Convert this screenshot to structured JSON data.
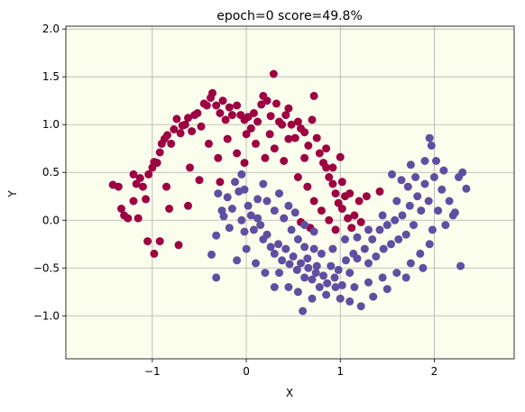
{
  "chart_data": {
    "type": "scatter",
    "title": "epoch=0 score=49.8%",
    "xlabel": "X",
    "ylabel": "Y",
    "xlim": [
      -1.92,
      2.85
    ],
    "ylim": [
      -1.45,
      2.03
    ],
    "xticks": [
      {
        "value": -1,
        "label": "−1"
      },
      {
        "value": 0,
        "label": "0"
      },
      {
        "value": 1,
        "label": "1"
      },
      {
        "value": 2,
        "label": "2"
      }
    ],
    "yticks": [
      {
        "value": -1.0,
        "label": "−1.0"
      },
      {
        "value": -0.5,
        "label": "−0.5"
      },
      {
        "value": 0.0,
        "label": "0.0"
      },
      {
        "value": 0.5,
        "label": "0.5"
      },
      {
        "value": 1.0,
        "label": "1.0"
      },
      {
        "value": 1.5,
        "label": "1.5"
      },
      {
        "value": 2.0,
        "label": "2.0"
      }
    ],
    "grid": true,
    "background_color": "#fbfeec",
    "series": [
      {
        "color": "#9e0142",
        "points": [
          [
            -1.42,
            0.37
          ],
          [
            -1.36,
            0.35
          ],
          [
            -1.33,
            0.12
          ],
          [
            -1.3,
            0.05
          ],
          [
            -1.26,
            0.02
          ],
          [
            -1.2,
            0.48
          ],
          [
            -1.17,
            0.38
          ],
          [
            -1.13,
            0.44
          ],
          [
            -1.1,
            0.35
          ],
          [
            -1.07,
            0.22
          ],
          [
            -1.04,
            0.48
          ],
          [
            -1.0,
            0.55
          ],
          [
            -0.98,
            0.61
          ],
          [
            -0.95,
            0.6
          ],
          [
            -0.92,
            0.71
          ],
          [
            -0.9,
            0.8
          ],
          [
            -0.87,
            0.85
          ],
          [
            -0.84,
            0.89
          ],
          [
            -0.8,
            0.8
          ],
          [
            -0.77,
            0.95
          ],
          [
            -0.74,
            1.06
          ],
          [
            -0.7,
            0.91
          ],
          [
            -0.68,
            0.99
          ],
          [
            -0.65,
            1.0
          ],
          [
            -0.62,
            1.07
          ],
          [
            -0.58,
            0.93
          ],
          [
            -0.55,
            1.1
          ],
          [
            -0.52,
            1.12
          ],
          [
            -0.48,
            0.98
          ],
          [
            -0.45,
            1.22
          ],
          [
            -0.42,
            1.2
          ],
          [
            -0.38,
            1.28
          ],
          [
            -0.36,
            1.33
          ],
          [
            -0.32,
            1.2
          ],
          [
            -0.28,
            1.12
          ],
          [
            -0.25,
            1.25
          ],
          [
            -0.22,
            1.05
          ],
          [
            -0.18,
            1.18
          ],
          [
            -0.15,
            1.1
          ],
          [
            -0.1,
            1.2
          ],
          [
            -0.06,
            1.1
          ],
          [
            -0.02,
            1.05
          ],
          [
            0.02,
            1.08
          ],
          [
            0.05,
            0.96
          ],
          [
            0.08,
            1.12
          ],
          [
            0.12,
            1.03
          ],
          [
            0.16,
            1.21
          ],
          [
            0.18,
            1.3
          ],
          [
            0.22,
            1.25
          ],
          [
            0.26,
            1.09
          ],
          [
            0.29,
            1.53
          ],
          [
            0.32,
            1.22
          ],
          [
            0.35,
            1.03
          ],
          [
            0.38,
            1.0
          ],
          [
            0.42,
            1.1
          ],
          [
            0.45,
            1.17
          ],
          [
            0.48,
            1.0
          ],
          [
            0.52,
            0.86
          ],
          [
            0.55,
            1.03
          ],
          [
            0.58,
            0.96
          ],
          [
            0.62,
            0.92
          ],
          [
            0.66,
            0.78
          ],
          [
            0.7,
            1.05
          ],
          [
            0.72,
            1.3
          ],
          [
            0.75,
            0.86
          ],
          [
            0.78,
            0.7
          ],
          [
            0.82,
            0.6
          ],
          [
            0.85,
            0.55
          ],
          [
            0.88,
            0.45
          ],
          [
            0.92,
            0.38
          ],
          [
            0.95,
            0.28
          ],
          [
            0.98,
            0.18
          ],
          [
            1.0,
            0.66
          ],
          [
            1.02,
            0.12
          ],
          [
            1.05,
            0.25
          ],
          [
            1.08,
            0.02
          ],
          [
            1.12,
            -0.08
          ],
          [
            1.15,
            0.05
          ],
          [
            1.2,
            0.2
          ],
          [
            1.28,
            0.25
          ],
          [
            1.42,
            0.3
          ],
          [
            -1.05,
            -0.22
          ],
          [
            -0.98,
            -0.35
          ],
          [
            -0.92,
            -0.22
          ],
          [
            -0.72,
            -0.26
          ],
          [
            -0.82,
            0.12
          ],
          [
            -0.62,
            0.15
          ],
          [
            -0.5,
            0.42
          ],
          [
            -0.28,
            0.4
          ],
          [
            -0.1,
            0.7
          ],
          [
            -0.02,
            0.6
          ],
          [
            0.1,
            0.8
          ],
          [
            0.2,
            0.65
          ],
          [
            0.3,
            0.75
          ],
          [
            0.4,
            0.62
          ],
          [
            0.55,
            0.45
          ],
          [
            0.65,
            0.35
          ],
          [
            0.72,
            0.2
          ],
          [
            0.8,
            0.1
          ],
          [
            0.88,
            0.0
          ],
          [
            0.95,
            -0.1
          ],
          [
            0.58,
            -0.02
          ],
          [
            0.68,
            -0.08
          ],
          [
            -0.3,
            0.65
          ],
          [
            -0.6,
            0.55
          ],
          [
            -0.85,
            0.35
          ],
          [
            -1.15,
            0.02
          ],
          [
            -1.2,
            0.2
          ],
          [
            -0.4,
            0.8
          ],
          [
            -0.2,
            0.85
          ],
          [
            0.0,
            0.9
          ],
          [
            0.25,
            0.9
          ],
          [
            0.45,
            0.85
          ],
          [
            0.62,
            0.65
          ],
          [
            0.85,
            0.75
          ],
          [
            0.92,
            0.55
          ],
          [
            1.02,
            0.4
          ],
          [
            1.1,
            0.28
          ],
          [
            1.22,
            -0.02
          ]
        ]
      },
      {
        "color": "#5e4fa2",
        "points": [
          [
            -0.3,
            0.28
          ],
          [
            -0.26,
            0.1
          ],
          [
            -0.2,
            0.24
          ],
          [
            -0.15,
            0.12
          ],
          [
            -0.12,
            0.4
          ],
          [
            -0.08,
            0.3
          ],
          [
            -0.05,
            0.48
          ],
          [
            -0.02,
            0.32
          ],
          [
            0.02,
            0.15
          ],
          [
            0.05,
            0.05
          ],
          [
            0.08,
            -0.1
          ],
          [
            0.12,
            0.02
          ],
          [
            0.15,
            -0.05
          ],
          [
            0.18,
            -0.2
          ],
          [
            0.22,
            -0.15
          ],
          [
            0.26,
            -0.28
          ],
          [
            0.3,
            -0.35
          ],
          [
            0.34,
            -0.25
          ],
          [
            0.38,
            -0.42
          ],
          [
            0.42,
            -0.3
          ],
          [
            0.46,
            -0.46
          ],
          [
            0.5,
            -0.38
          ],
          [
            0.54,
            -0.52
          ],
          [
            0.58,
            -0.45
          ],
          [
            0.6,
            -0.95
          ],
          [
            0.62,
            -0.6
          ],
          [
            0.66,
            -0.5
          ],
          [
            0.7,
            -0.62
          ],
          [
            0.74,
            -0.55
          ],
          [
            0.78,
            -0.7
          ],
          [
            0.82,
            -0.58
          ],
          [
            0.86,
            -0.66
          ],
          [
            0.9,
            -0.48
          ],
          [
            0.94,
            -0.6
          ],
          [
            0.98,
            -0.52
          ],
          [
            1.02,
            -0.68
          ],
          [
            1.06,
            -0.42
          ],
          [
            1.1,
            -0.55
          ],
          [
            1.14,
            -0.35
          ],
          [
            1.18,
            -0.4
          ],
          [
            1.22,
            -0.9
          ],
          [
            1.26,
            -0.3
          ],
          [
            1.3,
            -0.45
          ],
          [
            1.34,
            -0.2
          ],
          [
            1.38,
            -0.38
          ],
          [
            1.42,
            -0.1
          ],
          [
            1.46,
            -0.3
          ],
          [
            1.5,
            -0.05
          ],
          [
            1.54,
            -0.25
          ],
          [
            1.58,
            0.0
          ],
          [
            1.62,
            -0.2
          ],
          [
            1.66,
            0.05
          ],
          [
            1.7,
            -0.15
          ],
          [
            1.74,
            0.15
          ],
          [
            1.78,
            -0.05
          ],
          [
            1.82,
            0.25
          ],
          [
            1.86,
            0.1
          ],
          [
            1.9,
            0.38
          ],
          [
            1.94,
            0.2
          ],
          [
            1.95,
            0.86
          ],
          [
            1.97,
            0.78
          ],
          [
            2.0,
            0.45
          ],
          [
            2.04,
            0.1
          ],
          [
            2.08,
            0.32
          ],
          [
            2.12,
            -0.05
          ],
          [
            2.16,
            0.2
          ],
          [
            2.2,
            0.05
          ],
          [
            2.26,
            0.45
          ],
          [
            2.3,
            0.5
          ],
          [
            2.34,
            0.33
          ],
          [
            2.28,
            -0.48
          ],
          [
            2.22,
            0.08
          ],
          [
            1.55,
            0.48
          ],
          [
            1.65,
            0.42
          ],
          [
            1.75,
            0.58
          ],
          [
            1.9,
            0.62
          ],
          [
            0.1,
            -0.45
          ],
          [
            0.2,
            -0.55
          ],
          [
            0.35,
            -0.55
          ],
          [
            0.45,
            -0.7
          ],
          [
            0.55,
            -0.75
          ],
          [
            0.7,
            -0.82
          ],
          [
            0.85,
            -0.78
          ],
          [
            1.0,
            -0.82
          ],
          [
            1.15,
            -0.7
          ],
          [
            1.3,
            -0.65
          ],
          [
            1.45,
            -0.6
          ],
          [
            1.6,
            -0.55
          ],
          [
            1.75,
            -0.45
          ],
          [
            1.85,
            -0.35
          ],
          [
            1.95,
            -0.25
          ],
          [
            -0.32,
            -0.16
          ],
          [
            -0.37,
            -0.36
          ],
          [
            -0.32,
            -0.6
          ],
          [
            -0.1,
            -0.42
          ],
          [
            -0.02,
            -0.12
          ],
          [
            0.0,
            -0.3
          ],
          [
            0.12,
            0.22
          ],
          [
            0.18,
            0.38
          ],
          [
            0.22,
            0.2
          ],
          [
            0.3,
            0.1
          ],
          [
            0.4,
            0.02
          ],
          [
            0.48,
            -0.1
          ],
          [
            0.55,
            -0.2
          ],
          [
            0.62,
            -0.28
          ],
          [
            0.72,
            -0.3
          ],
          [
            0.8,
            -0.35
          ],
          [
            0.92,
            -0.3
          ],
          [
            1.05,
            -0.2
          ],
          [
            1.18,
            -0.18
          ],
          [
            1.3,
            -0.1
          ],
          [
            1.45,
            0.05
          ],
          [
            1.6,
            0.2
          ],
          [
            1.72,
            0.35
          ],
          [
            1.8,
            0.45
          ],
          [
            2.02,
            0.62
          ],
          [
            2.1,
            0.52
          ],
          [
            1.98,
            -0.1
          ],
          [
            1.88,
            -0.5
          ],
          [
            1.7,
            -0.6
          ],
          [
            1.5,
            -0.72
          ],
          [
            1.35,
            -0.8
          ],
          [
            1.1,
            -0.85
          ],
          [
            0.95,
            -0.7
          ],
          [
            0.75,
            -0.48
          ],
          [
            0.65,
            -0.4
          ],
          [
            0.3,
            -0.7
          ],
          [
            -0.05,
            0.0
          ],
          [
            -0.18,
            -0.08
          ],
          [
            -0.24,
            0.04
          ],
          [
            0.35,
            0.28
          ],
          [
            0.45,
            0.15
          ],
          [
            0.52,
            0.08
          ],
          [
            0.62,
            -0.05
          ],
          [
            0.72,
            -0.12
          ]
        ]
      }
    ]
  }
}
